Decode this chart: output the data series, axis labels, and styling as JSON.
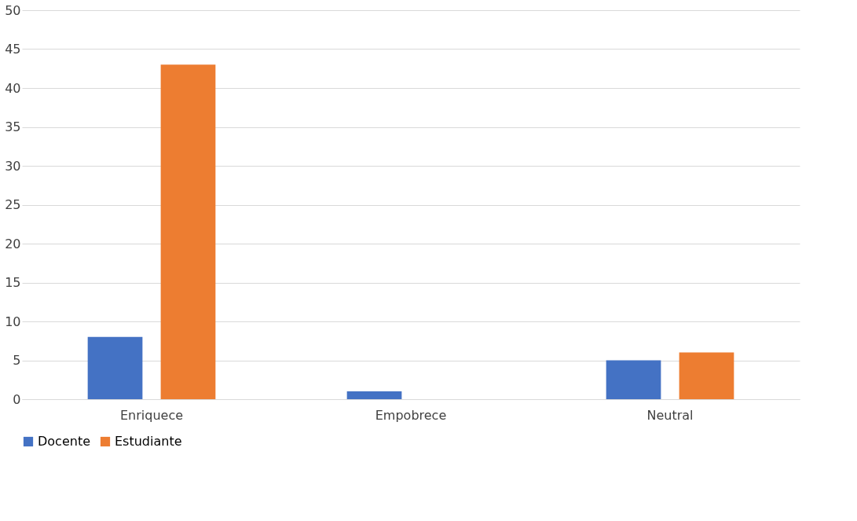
{
  "chart_data": {
    "type": "bar",
    "categories": [
      "Enriquece",
      "Empobrece",
      "Neutral"
    ],
    "series": [
      {
        "name": "Docente",
        "color": "#4472c4",
        "values": [
          8,
          1,
          5
        ]
      },
      {
        "name": "Estudiante",
        "color": "#ed7d31",
        "values": [
          43,
          0,
          6
        ]
      }
    ],
    "ylim": [
      0,
      50
    ],
    "yticks": [
      0,
      5,
      10,
      15,
      20,
      25,
      30,
      35,
      40,
      45,
      50
    ],
    "grid": "y",
    "legend": "bottom"
  }
}
